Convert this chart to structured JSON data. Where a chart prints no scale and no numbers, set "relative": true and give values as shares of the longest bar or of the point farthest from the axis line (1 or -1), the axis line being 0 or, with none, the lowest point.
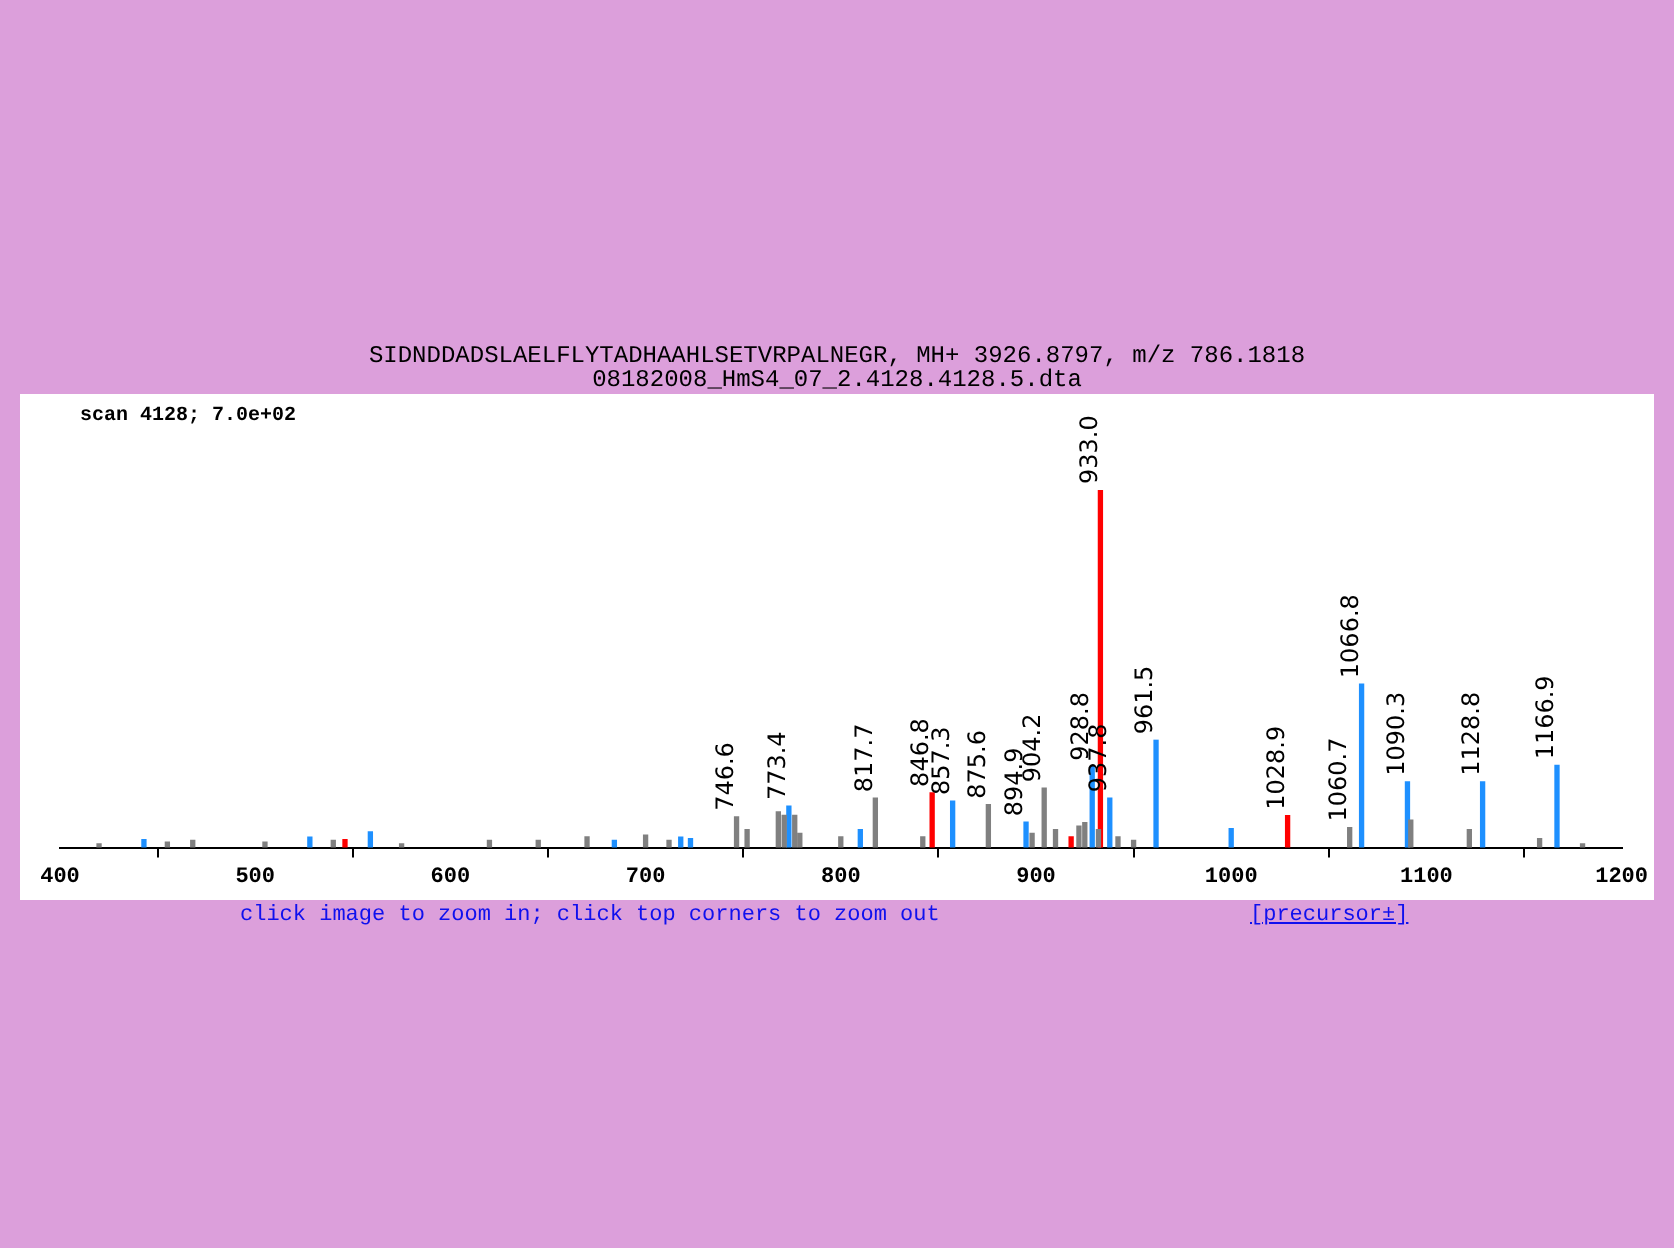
{
  "chart_data": {
    "type": "bar",
    "title": "SIDNDDADSLAELFLYTADHAAHLSETVRPALNEGR, MH+ 3926.8797, m/z 786.1818",
    "subtitle": "08182008_HmS4_07_2.4128.4128.5.dta",
    "annotations": [
      "scan 4128; 7.0e+02",
      "click image to zoom in; click top corners to zoom out",
      "[precursor±]",
      {
        "text": "746.6",
        "x": 746.6,
        "y": 0.086
      },
      {
        "text": "773.4",
        "x": 773.4,
        "y": 0.116
      },
      {
        "text": "817.7",
        "x": 817.7,
        "y": 0.138
      },
      {
        "text": "846.8",
        "x": 846.8,
        "y": 0.153
      },
      {
        "text": "857.3",
        "x": 857.3,
        "y": 0.13
      },
      {
        "text": "875.6",
        "x": 875.6,
        "y": 0.12
      },
      {
        "text": "894.9",
        "x": 894.9,
        "y": 0.071
      },
      {
        "text": "904.2",
        "x": 904.2,
        "y": 0.166
      },
      {
        "text": "928.8",
        "x": 928.8,
        "y": 0.226
      },
      {
        "text": "933.0",
        "x": 933.0,
        "y": 1
      },
      {
        "text": "937.8",
        "x": 937.8,
        "y": 0.138
      },
      {
        "text": "961.5",
        "x": 961.5,
        "y": 0.3
      },
      {
        "text": "1028.9",
        "x": 1028.9,
        "y": 0.089
      },
      {
        "text": "1060.7",
        "x": 1060.7,
        "y": 0.056
      },
      {
        "text": "1066.8",
        "x": 1066.8,
        "y": 0.457
      },
      {
        "text": "1090.3",
        "x": 1090.3,
        "y": 0.184
      },
      {
        "text": "1128.8",
        "x": 1128.8,
        "y": 0.184
      },
      {
        "text": "1166.9",
        "x": 1166.9,
        "y": 0.23
      }
    ],
    "relative": true,
    "xlim": [
      400,
      1200
    ],
    "xticks": [
      400,
      500,
      600,
      700,
      800,
      900,
      1000,
      1100,
      1200
    ],
    "series": [
      {
        "color": "#808080",
        "x": [
          420,
          455,
          468,
          505,
          540,
          575,
          620,
          645,
          670,
          700,
          712,
          746.6,
          752,
          768,
          771,
          776.4,
          779,
          800,
          817.7,
          842,
          875.6,
          898,
          904.2,
          910,
          922,
          925,
          932,
          942,
          950,
          1060.7,
          1092,
          1122,
          1158,
          1180
        ],
        "values": [
          0.01,
          0.015,
          0.02,
          0.015,
          0.02,
          0.01,
          0.02,
          0.02,
          0.03,
          0.035,
          0.02,
          0.086,
          0.05,
          0.1,
          0.09,
          0.09,
          0.04,
          0.03,
          0.138,
          0.03,
          0.12,
          0.04,
          0.166,
          0.05,
          0.06,
          0.07,
          0.05,
          0.03,
          0.02,
          0.056,
          0.077,
          0.05,
          0.025,
          0.01
        ]
      },
      {
        "color": "#1e90ff",
        "x": [
          443,
          528,
          559,
          684,
          718,
          723,
          773.4,
          810,
          857.3,
          894.9,
          928.8,
          937.8,
          961.5,
          1000,
          1066.8,
          1090.3,
          1128.8,
          1166.9
        ],
        "values": [
          0.022,
          0.029,
          0.044,
          0.02,
          0.029,
          0.025,
          0.116,
          0.05,
          0.13,
          0.071,
          0.226,
          0.138,
          0.3,
          0.053,
          0.457,
          0.184,
          0.184,
          0.23
        ]
      },
      {
        "color": "#ff0000",
        "x": [
          546,
          846.8,
          918,
          933.0,
          1028.9
        ],
        "values": [
          0.022,
          0.153,
          0.03,
          1,
          0.089
        ]
      }
    ]
  }
}
